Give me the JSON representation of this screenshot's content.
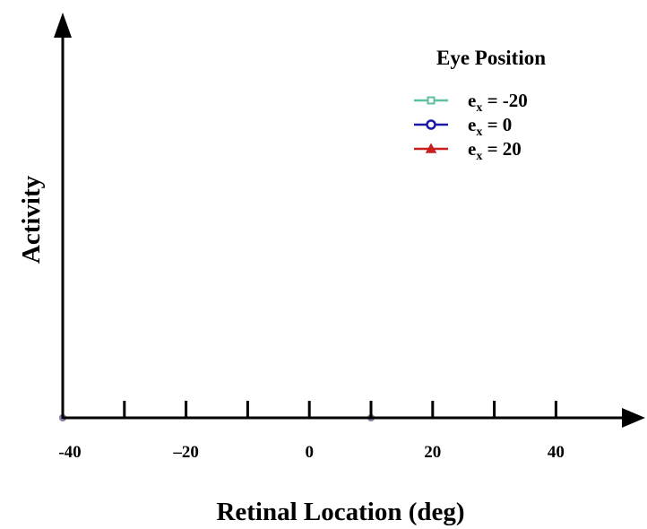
{
  "chart_data": {
    "type": "line",
    "xlabel": "Retinal Location (deg)",
    "ylabel": "Activity",
    "xlim": [
      -40,
      50
    ],
    "x_ticks": [
      -40,
      -30,
      -20,
      -10,
      0,
      10,
      20,
      30,
      40
    ],
    "x_tick_labels": [
      "-40",
      "–20",
      "0",
      "20",
      "40"
    ],
    "x_tick_label_values": [
      -40,
      -20,
      0,
      20,
      40
    ],
    "grid": false,
    "legend": {
      "title": "Eye Position",
      "placement": "top-right",
      "entries": [
        {
          "base": "e",
          "sub": "x",
          "suffix": " = -20",
          "color": "#5fbf9f",
          "marker": "square"
        },
        {
          "base": "e",
          "sub": "x",
          "suffix": " = 0",
          "color": "#1a1aa6",
          "marker": "circle"
        },
        {
          "base": "e",
          "sub": "x",
          "suffix": " = 20",
          "color": "#c81e1e",
          "marker": "triangle"
        }
      ]
    },
    "series": [
      {
        "color": "#5fbf9f",
        "x": [
          -40,
          10
        ],
        "y": [
          0,
          0
        ]
      },
      {
        "color": "#1a1aa6",
        "x": [
          -40,
          10
        ],
        "y": [
          0,
          0
        ]
      },
      {
        "color": "#c81e1e",
        "x": [
          -40,
          10
        ],
        "y": [
          0,
          0
        ]
      }
    ],
    "axis_color": "#000000",
    "baseline_color": "#1f6f5f"
  }
}
